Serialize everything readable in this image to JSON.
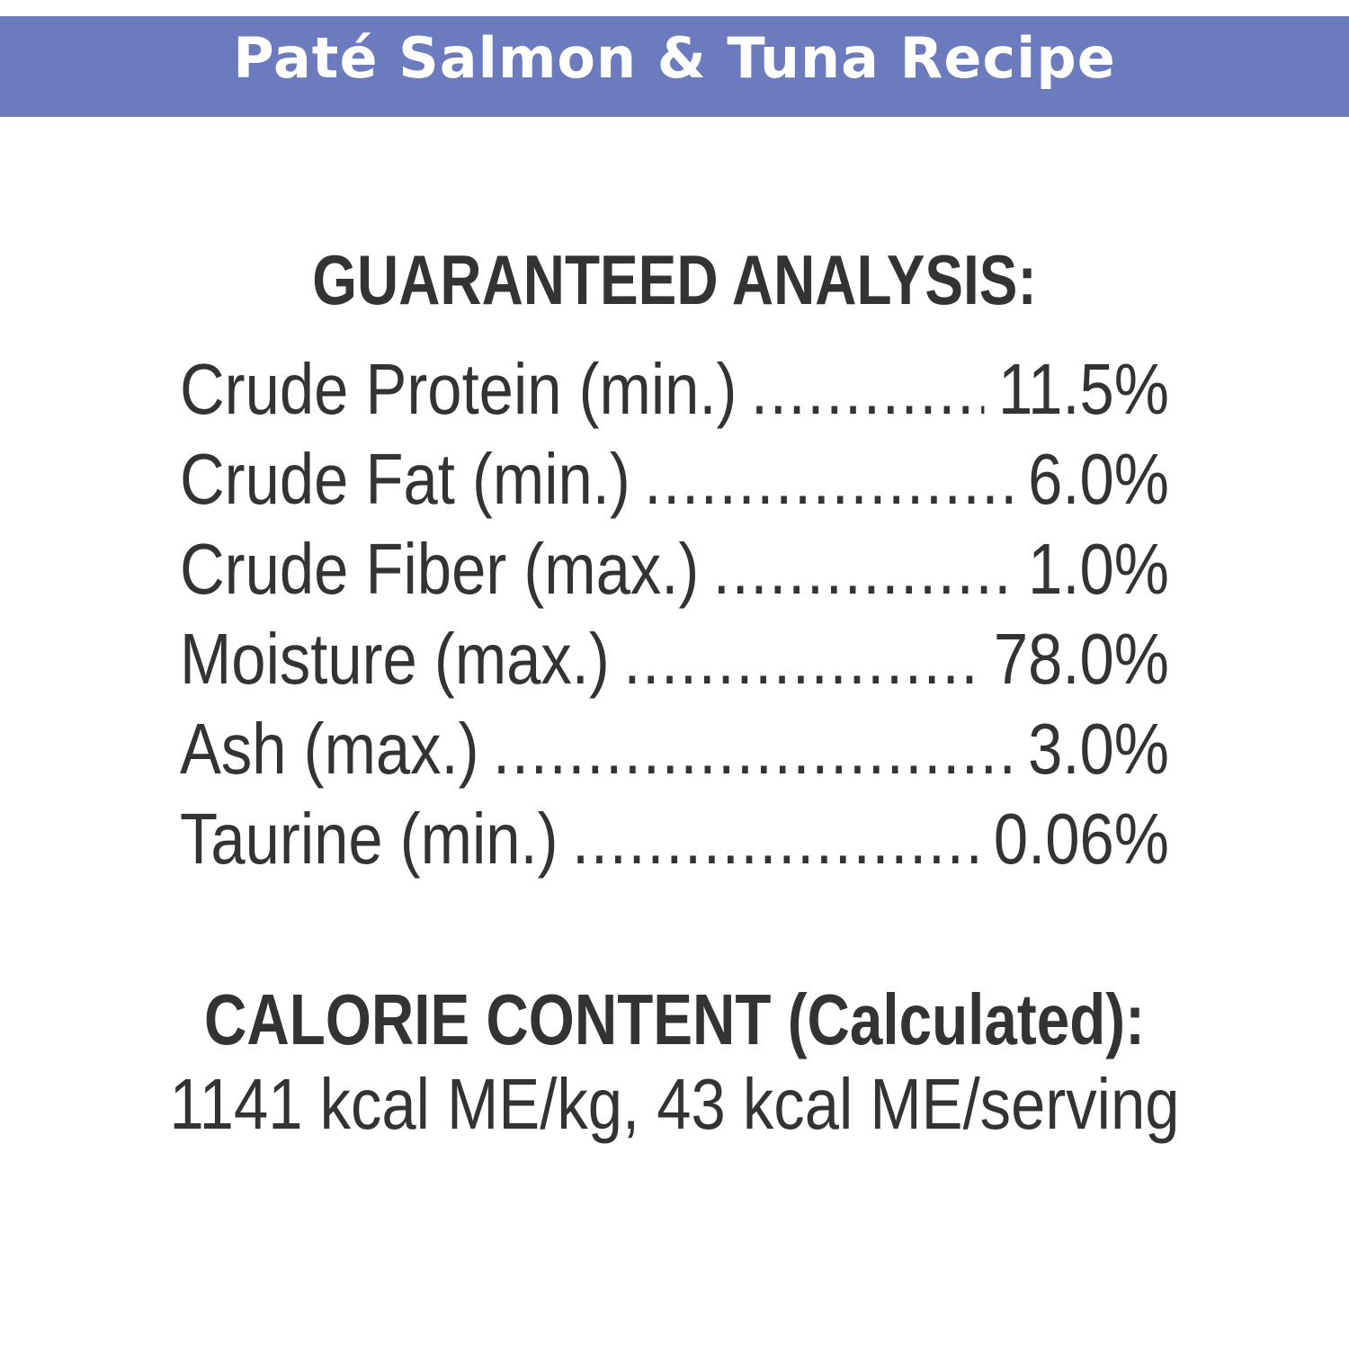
{
  "banner": {
    "title": "Paté Salmon & Tuna Recipe",
    "color": "#6b7bbd"
  },
  "analysis": {
    "heading": "GUARANTEED ANALYSIS:",
    "rows": [
      {
        "label": "Crude Protein (min.)",
        "value": "11.5%"
      },
      {
        "label": "Crude Fat (min.)",
        "value": "6.0%"
      },
      {
        "label": "Crude Fiber (max.)",
        "value": "1.0%"
      },
      {
        "label": "Moisture (max.)",
        "value": "78.0%"
      },
      {
        "label": "Ash (max.)",
        "value": "3.0%"
      },
      {
        "label": "Taurine (min.)",
        "value": "0.06%"
      }
    ]
  },
  "calorie": {
    "heading": "CALORIE CONTENT (Calculated):",
    "text": "1141 kcal ME/kg, 43 kcal ME/serving"
  },
  "colors": {
    "text": "#333333",
    "banner_text": "#ffffff"
  }
}
